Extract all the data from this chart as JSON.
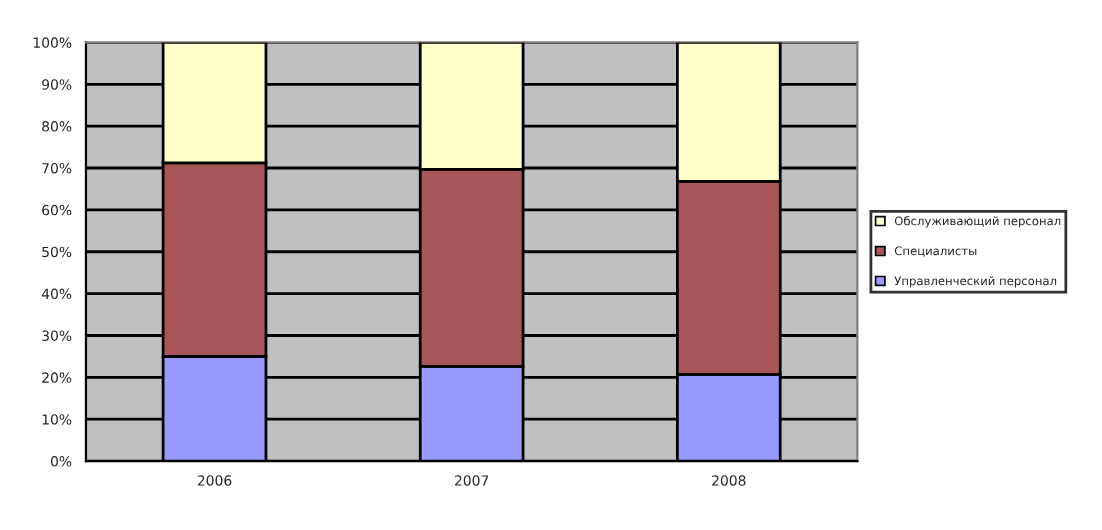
{
  "chart_data": {
    "type": "bar",
    "stacked": true,
    "categories": [
      "2006",
      "2007",
      "2008"
    ],
    "series": [
      {
        "name": "Управленческий персонал",
        "color": "#9999ff",
        "values": [
          25.0,
          22.6,
          20.7
        ]
      },
      {
        "name": "Специалисты",
        "color": "#a9565a",
        "values": [
          46.2,
          47.1,
          46.1
        ]
      },
      {
        "name": "Обслуживающий персонал",
        "color": "#ffffcc",
        "values": [
          28.8,
          30.3,
          33.2
        ]
      }
    ],
    "ylim": [
      0,
      100
    ],
    "yticks": [
      {
        "value": 0,
        "label": "0%"
      },
      {
        "value": 10,
        "label": "10%"
      },
      {
        "value": 20,
        "label": "20%"
      },
      {
        "value": 30,
        "label": "30%"
      },
      {
        "value": 40,
        "label": "40%"
      },
      {
        "value": 50,
        "label": "50%"
      },
      {
        "value": 60,
        "label": "60%"
      },
      {
        "value": 70,
        "label": "70%"
      },
      {
        "value": 80,
        "label": "80%"
      },
      {
        "value": 90,
        "label": "90%"
      },
      {
        "value": 100,
        "label": "100%"
      }
    ],
    "grid": "y",
    "legend": "right"
  }
}
